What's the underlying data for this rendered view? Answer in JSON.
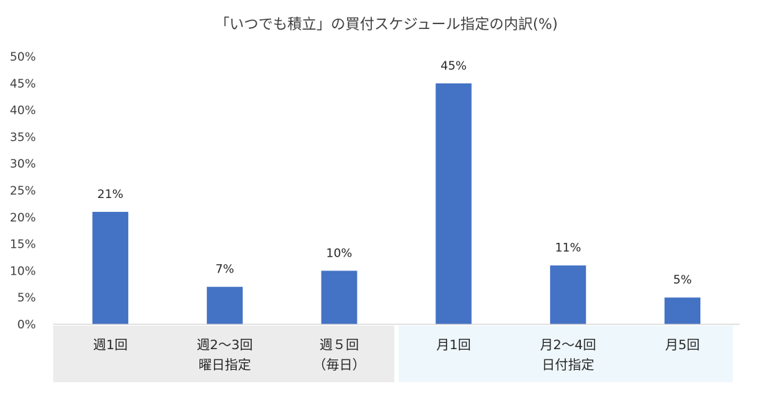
{
  "chart_data": {
    "type": "bar",
    "title": "「いつでも積立」の買付スケジュール指定の内訳(%)",
    "xlabel": "",
    "ylabel": "",
    "ylim": [
      0,
      50
    ],
    "y_ticks": [
      0,
      5,
      10,
      15,
      20,
      25,
      30,
      35,
      40,
      45,
      50
    ],
    "y_tick_labels": [
      "0%",
      "5%",
      "10%",
      "15%",
      "20%",
      "25%",
      "30%",
      "35%",
      "40%",
      "45%",
      "50%"
    ],
    "grid": false,
    "categories": [
      [
        "週1回"
      ],
      [
        "週2〜3回",
        "曜日指定"
      ],
      [
        "週５回",
        "（毎日）"
      ],
      [
        "月1回"
      ],
      [
        "月2〜4回",
        "日付指定"
      ],
      [
        "月5回"
      ]
    ],
    "values": [
      21,
      7,
      10,
      45,
      11,
      5
    ],
    "data_labels": [
      "21%",
      "7%",
      "10%",
      "45%",
      "11%",
      "5%"
    ],
    "groups": [
      {
        "members": [
          0,
          1,
          2
        ],
        "color": "#ececec"
      },
      {
        "members": [
          3,
          4,
          5
        ],
        "color": "#eef7fc"
      }
    ],
    "bar_color": "#4472c4"
  }
}
